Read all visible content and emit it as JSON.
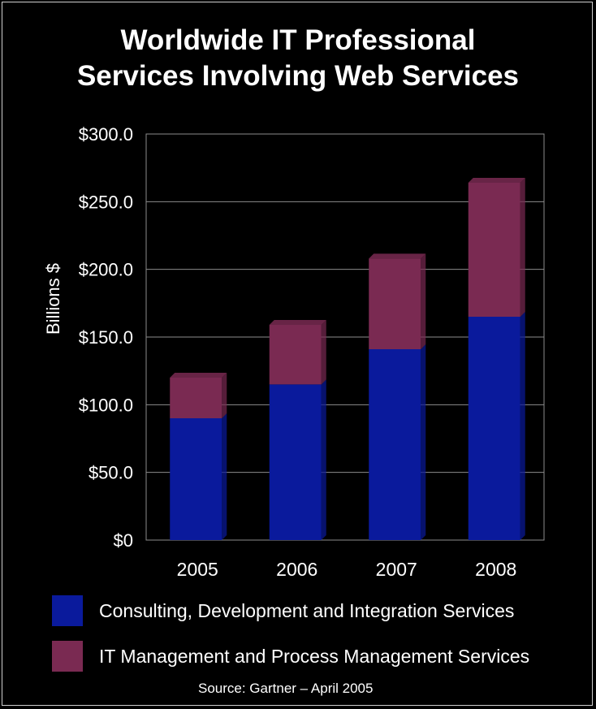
{
  "chart_data": {
    "type": "bar",
    "stacked": true,
    "title_lines": [
      "Worldwide IT Professional",
      "Services Involving Web Services"
    ],
    "ylabel": "Billions $",
    "categories": [
      "2005",
      "2006",
      "2007",
      "2008"
    ],
    "yticks": [
      "$0",
      "$50.0",
      "$100.0",
      "$150.0",
      "$200.0",
      "$250.0",
      "$300.0"
    ],
    "ylim": [
      0,
      300
    ],
    "grid": true,
    "series": [
      {
        "name": "Consulting, Development and Integration Services",
        "color": "#0a1a9c",
        "values": [
          90,
          115,
          141,
          165
        ]
      },
      {
        "name": "IT Management and Process Management Services",
        "color": "#7a2a52",
        "values": [
          30,
          44,
          67,
          99
        ]
      }
    ],
    "legend_position": "bottom",
    "source": "Source: Gartner – April 2005"
  }
}
